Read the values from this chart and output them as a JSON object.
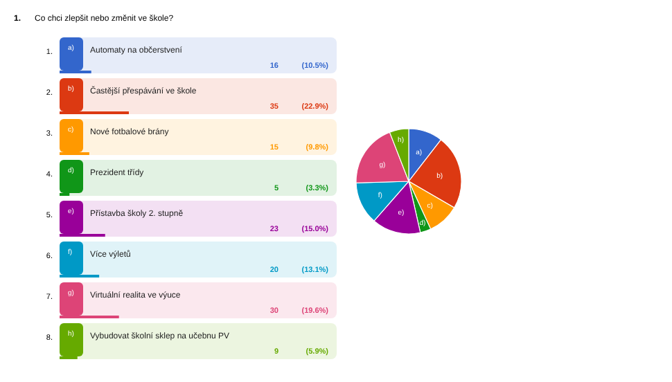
{
  "chart_data": [
    {
      "type": "bar",
      "orientation": "horizontal",
      "title": "Co chci zlepšit nebo změnit ve škole?",
      "categories": [
        "Automaty na občerstvení",
        "Častější přespávání ve škole",
        "Nové fotbalové brány",
        "Prezident třídy",
        "Přístavba školy 2. stupně",
        "Více výletů",
        "Virtuální realita ve výuce",
        "Vybudovat školní sklep na učebnu PV"
      ],
      "values": [
        16,
        35,
        15,
        5,
        23,
        20,
        30,
        9
      ],
      "value_labels": [
        "16",
        "35",
        "15",
        "5",
        "23",
        "20",
        "30",
        "9"
      ],
      "colors": [
        "#3366cc",
        "#dc3912",
        "#ff9900",
        "#109618",
        "#990099",
        "#0099c6",
        "#dd4477",
        "#66aa00"
      ],
      "annotations": [
        "1.",
        "1.",
        "2.",
        "3.",
        "4.",
        "5.",
        "6.",
        "7.",
        "8."
      ]
    },
    {
      "type": "pie",
      "categories": [
        "a)",
        "b)",
        "c)",
        "d)",
        "e)",
        "f)",
        "g)",
        "h)"
      ],
      "values": [
        10.5,
        22.9,
        9.8,
        3.3,
        15.0,
        13.1,
        19.6,
        5.9
      ],
      "value_labels": [
        "(10.5%)",
        "(22.9%)",
        "(9.8%)",
        "(3.3%)",
        "(15.0%)",
        "(13.1%)",
        "(19.6%)",
        "(5.9%)"
      ],
      "colors": [
        "#3366cc",
        "#dc3912",
        "#ff9900",
        "#109618",
        "#990099",
        "#0099c6",
        "#dd4477",
        "#66aa00"
      ]
    }
  ]
}
